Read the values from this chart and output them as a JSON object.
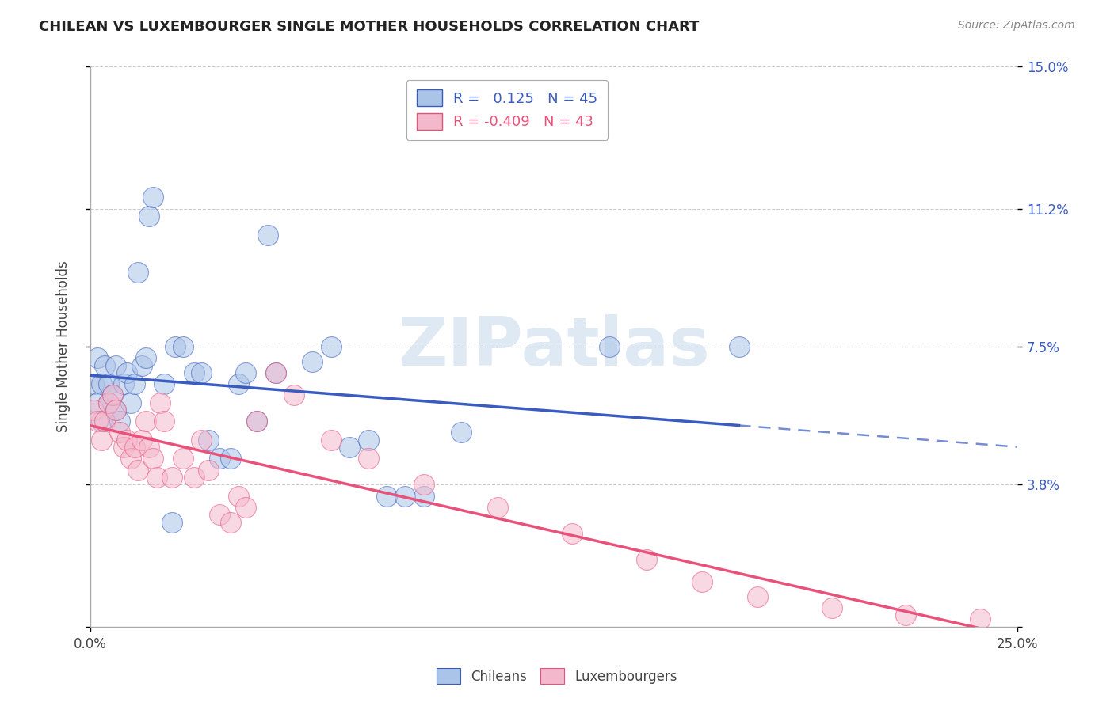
{
  "title": "CHILEAN VS LUXEMBOURGER SINGLE MOTHER HOUSEHOLDS CORRELATION CHART",
  "source": "Source: ZipAtlas.com",
  "ylabel": "Single Mother Households",
  "xlim": [
    0.0,
    0.25
  ],
  "ylim": [
    0.0,
    0.15
  ],
  "ytick_vals": [
    0.0,
    0.038,
    0.075,
    0.112,
    0.15
  ],
  "ytick_labels": [
    "",
    "3.8%",
    "7.5%",
    "11.2%",
    "15.0%"
  ],
  "xtick_vals": [
    0.0,
    0.25
  ],
  "xtick_labels": [
    "0.0%",
    "25.0%"
  ],
  "chilean_color": "#aac4e8",
  "luxembourger_color": "#f4b8cc",
  "chilean_line_color": "#3a5bbf",
  "luxembourger_line_color": "#e8527a",
  "r_chilean": 0.125,
  "n_chilean": 45,
  "r_luxembourger": -0.409,
  "n_luxembourger": 43,
  "watermark": "ZIPatlas",
  "chilean_x": [
    0.001,
    0.002,
    0.002,
    0.003,
    0.003,
    0.004,
    0.005,
    0.005,
    0.006,
    0.007,
    0.007,
    0.008,
    0.009,
    0.01,
    0.011,
    0.012,
    0.013,
    0.014,
    0.015,
    0.016,
    0.017,
    0.02,
    0.022,
    0.023,
    0.025,
    0.028,
    0.03,
    0.032,
    0.035,
    0.038,
    0.04,
    0.042,
    0.045,
    0.048,
    0.05,
    0.06,
    0.065,
    0.07,
    0.075,
    0.08,
    0.085,
    0.09,
    0.1,
    0.14,
    0.175
  ],
  "chilean_y": [
    0.065,
    0.072,
    0.06,
    0.055,
    0.065,
    0.07,
    0.06,
    0.065,
    0.062,
    0.058,
    0.07,
    0.055,
    0.065,
    0.068,
    0.06,
    0.065,
    0.095,
    0.07,
    0.072,
    0.11,
    0.115,
    0.065,
    0.028,
    0.075,
    0.075,
    0.068,
    0.068,
    0.05,
    0.045,
    0.045,
    0.065,
    0.068,
    0.055,
    0.105,
    0.068,
    0.071,
    0.075,
    0.048,
    0.05,
    0.035,
    0.035,
    0.035,
    0.052,
    0.075,
    0.075
  ],
  "luxembourger_x": [
    0.001,
    0.002,
    0.003,
    0.004,
    0.005,
    0.006,
    0.007,
    0.008,
    0.009,
    0.01,
    0.011,
    0.012,
    0.013,
    0.014,
    0.015,
    0.016,
    0.017,
    0.018,
    0.019,
    0.02,
    0.022,
    0.025,
    0.028,
    0.03,
    0.032,
    0.035,
    0.038,
    0.04,
    0.042,
    0.045,
    0.05,
    0.055,
    0.065,
    0.075,
    0.09,
    0.11,
    0.13,
    0.15,
    0.165,
    0.18,
    0.2,
    0.22,
    0.24
  ],
  "luxembourger_y": [
    0.058,
    0.055,
    0.05,
    0.055,
    0.06,
    0.062,
    0.058,
    0.052,
    0.048,
    0.05,
    0.045,
    0.048,
    0.042,
    0.05,
    0.055,
    0.048,
    0.045,
    0.04,
    0.06,
    0.055,
    0.04,
    0.045,
    0.04,
    0.05,
    0.042,
    0.03,
    0.028,
    0.035,
    0.032,
    0.055,
    0.068,
    0.062,
    0.05,
    0.045,
    0.038,
    0.032,
    0.025,
    0.018,
    0.012,
    0.008,
    0.005,
    0.003,
    0.002
  ],
  "chilean_line_start_x": 0.0,
  "chilean_line_end_x": 0.175,
  "chilean_line_dashed_start_x": 0.175,
  "chilean_line_dashed_end_x": 0.25,
  "luxembourger_line_start_x": 0.0,
  "luxembourger_line_end_x": 0.25,
  "point_size": 350,
  "point_alpha": 0.55
}
